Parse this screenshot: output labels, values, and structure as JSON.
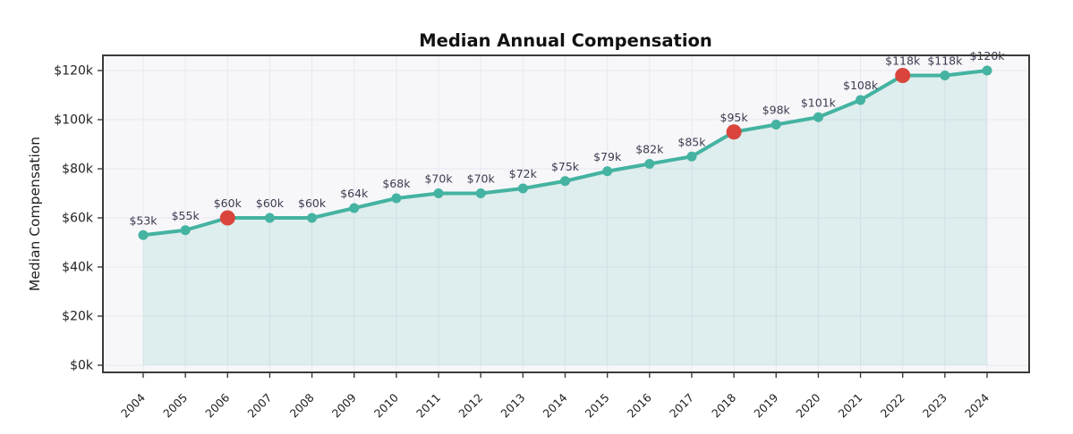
{
  "chart_data": {
    "type": "line",
    "title": "Median Annual Compensation",
    "xlabel": "",
    "ylabel": "Median Compensation",
    "categories": [
      "2004",
      "2005",
      "2006",
      "2007",
      "2008",
      "2009",
      "2010",
      "2011",
      "2012",
      "2013",
      "2014",
      "2015",
      "2016",
      "2017",
      "2018",
      "2019",
      "2020",
      "2021",
      "2022",
      "2023",
      "2024"
    ],
    "values": [
      53,
      55,
      60,
      60,
      60,
      64,
      68,
      70,
      70,
      72,
      75,
      79,
      82,
      85,
      95,
      98,
      101,
      108,
      118,
      118,
      120
    ],
    "point_labels": [
      "$53k",
      "$55k",
      "$60k",
      "$60k",
      "$60k",
      "$64k",
      "$68k",
      "$70k",
      "$70k",
      "$72k",
      "$75k",
      "$79k",
      "$82k",
      "$85k",
      "$95k",
      "$98k",
      "$101k",
      "$108k",
      "$118k",
      "$118k",
      "$120k"
    ],
    "highlighted_categories": [
      "2006",
      "2018",
      "2022"
    ],
    "y_tick_labels": [
      "$0k",
      "$20k",
      "$40k",
      "$60k",
      "$80k",
      "$100k",
      "$120k"
    ],
    "y_tick_values": [
      0,
      20,
      40,
      60,
      80,
      100,
      120
    ],
    "ylim": [
      -3,
      126
    ],
    "grid": true,
    "legend": "none",
    "area_fill": true,
    "colors": {
      "line": "#44b3a1",
      "marker": "#44b3a1",
      "highlight_marker": "#d9453d",
      "area_fill": "rgba(68,179,161,0.14)",
      "plot_background": "#f7f7fa",
      "grid": "#e7e7f0",
      "spine": "#3a3a3a",
      "tick_label": "#1f1f1f",
      "data_label": "#3c3c50",
      "title": "#111111",
      "figure_background": "#ffffff"
    }
  }
}
